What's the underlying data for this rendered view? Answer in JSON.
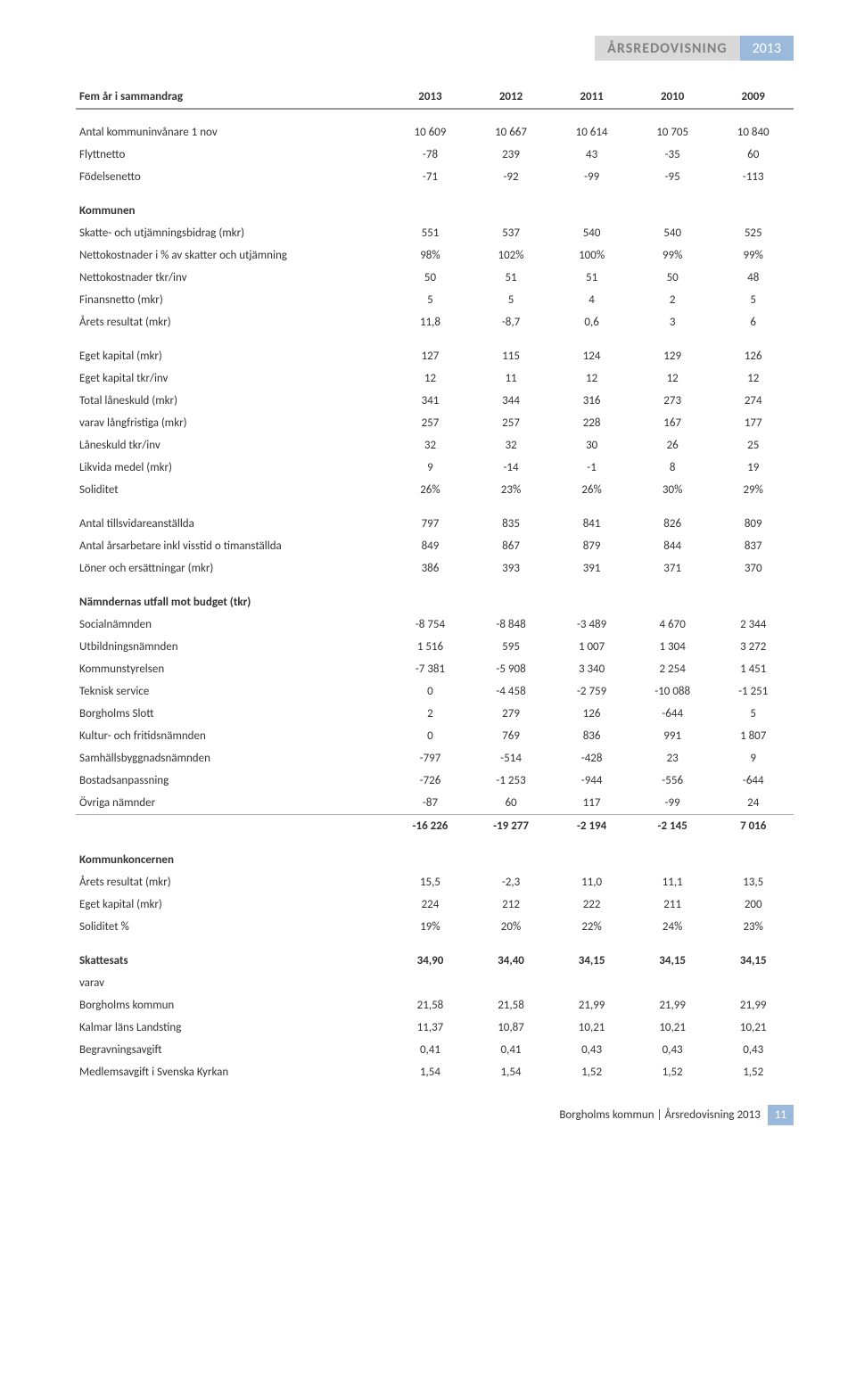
{
  "header": {
    "title": "ÅRSREDOVISNING",
    "year": "2013"
  },
  "years": [
    "2013",
    "2012",
    "2011",
    "2010",
    "2009"
  ],
  "sections": [
    {
      "title": "Fem år i sammandrag",
      "type": "title-only"
    },
    {
      "rows": [
        {
          "label": "Antal kommuninvånare 1 nov",
          "vals": [
            "10 609",
            "10 667",
            "10 614",
            "10 705",
            "10 840"
          ]
        },
        {
          "label": "Flyttnetto",
          "vals": [
            "-78",
            "239",
            "43",
            "-35",
            "60"
          ]
        },
        {
          "label": "Födelsenetto",
          "vals": [
            "-71",
            "-92",
            "-99",
            "-95",
            "-113"
          ]
        }
      ]
    },
    {
      "title": "Kommunen",
      "rows": [
        {
          "label": "Skatte- och utjämningsbidrag (mkr)",
          "vals": [
            "551",
            "537",
            "540",
            "540",
            "525"
          ]
        },
        {
          "label": "Nettokostnader i % av skatter och utjämning",
          "vals": [
            "98%",
            "102%",
            "100%",
            "99%",
            "99%"
          ]
        },
        {
          "label": "Nettokostnader tkr/inv",
          "vals": [
            "50",
            "51",
            "51",
            "50",
            "48"
          ]
        },
        {
          "label": "Finansnetto (mkr)",
          "vals": [
            "5",
            "5",
            "4",
            "2",
            "5"
          ]
        },
        {
          "label": "Årets resultat (mkr)",
          "vals": [
            "11,8",
            "-8,7",
            "0,6",
            "3",
            "6"
          ]
        }
      ]
    },
    {
      "rows": [
        {
          "label": "Eget kapital (mkr)",
          "vals": [
            "127",
            "115",
            "124",
            "129",
            "126"
          ]
        },
        {
          "label": "Eget kapital tkr/inv",
          "vals": [
            "12",
            "11",
            "12",
            "12",
            "12"
          ]
        },
        {
          "label": "Total låneskuld (mkr)",
          "vals": [
            "341",
            "344",
            "316",
            "273",
            "274"
          ]
        },
        {
          "label": "varav långfristiga (mkr)",
          "vals": [
            "257",
            "257",
            "228",
            "167",
            "177"
          ]
        },
        {
          "label": "Låneskuld tkr/inv",
          "vals": [
            "32",
            "32",
            "30",
            "26",
            "25"
          ]
        },
        {
          "label": "Likvida medel (mkr)",
          "vals": [
            "9",
            "-14",
            "-1",
            "8",
            "19"
          ]
        },
        {
          "label": "Soliditet",
          "vals": [
            "26%",
            "23%",
            "26%",
            "30%",
            "29%"
          ]
        }
      ]
    },
    {
      "rows": [
        {
          "label": "Antal tillsvidareanställda",
          "vals": [
            "797",
            "835",
            "841",
            "826",
            "809"
          ]
        },
        {
          "label": "Antal årsarbetare inkl visstid o timanställda",
          "vals": [
            "849",
            "867",
            "879",
            "844",
            "837"
          ]
        },
        {
          "label": "Löner och ersättningar (mkr)",
          "vals": [
            "386",
            "393",
            "391",
            "371",
            "370"
          ]
        }
      ]
    },
    {
      "title": "Nämndernas utfall mot budget (tkr)",
      "rows": [
        {
          "label": "Socialnämnden",
          "vals": [
            "-8 754",
            "-8 848",
            "-3 489",
            "4 670",
            "2 344"
          ]
        },
        {
          "label": "Utbildningsnämnden",
          "vals": [
            "1 516",
            "595",
            "1 007",
            "1 304",
            "3 272"
          ]
        },
        {
          "label": "Kommunstyrelsen",
          "vals": [
            "-7 381",
            "-5 908",
            "3 340",
            "2 254",
            "1 451"
          ]
        },
        {
          "label": "Teknisk service",
          "vals": [
            "0",
            "-4 458",
            "-2 759",
            "-10 088",
            "-1 251"
          ]
        },
        {
          "label": "Borgholms Slott",
          "vals": [
            "2",
            "279",
            "126",
            "-644",
            "5"
          ]
        },
        {
          "label": "Kultur- och fritidsnämnden",
          "vals": [
            "0",
            "769",
            "836",
            "991",
            "1 807"
          ]
        },
        {
          "label": "Samhällsbyggnadsnämnden",
          "vals": [
            "-797",
            "-514",
            "-428",
            "23",
            "9"
          ]
        },
        {
          "label": "Bostadsanpassning",
          "vals": [
            "-726",
            "-1 253",
            "-944",
            "-556",
            "-644"
          ]
        },
        {
          "label": "Övriga nämnder",
          "vals": [
            "-87",
            "60",
            "117",
            "-99",
            "24"
          ]
        },
        {
          "label": "",
          "vals": [
            "-16 226",
            "-19 277",
            "-2 194",
            "-2 145",
            "7 016"
          ],
          "bold": true,
          "topline": true
        }
      ]
    },
    {
      "title": "Kommunkoncernen",
      "rows": [
        {
          "label": "Årets resultat (mkr)",
          "vals": [
            "15,5",
            "-2,3",
            "11,0",
            "11,1",
            "13,5"
          ]
        },
        {
          "label": "Eget kapital (mkr)",
          "vals": [
            "224",
            "212",
            "222",
            "211",
            "200"
          ]
        },
        {
          "label": "Soliditet %",
          "vals": [
            "19%",
            "20%",
            "22%",
            "24%",
            "23%"
          ]
        }
      ]
    },
    {
      "rows": [
        {
          "label": "Skattesats",
          "vals": [
            "34,90",
            "34,40",
            "34,15",
            "34,15",
            "34,15"
          ],
          "bold": true
        },
        {
          "label": "varav",
          "vals": [
            "",
            "",
            "",
            "",
            ""
          ]
        },
        {
          "label": "Borgholms kommun",
          "vals": [
            "21,58",
            "21,58",
            "21,99",
            "21,99",
            "21,99"
          ]
        },
        {
          "label": "Kalmar läns Landsting",
          "vals": [
            "11,37",
            "10,87",
            "10,21",
            "10,21",
            "10,21"
          ]
        },
        {
          "label": "Begravningsavgift",
          "vals": [
            "0,41",
            "0,41",
            "0,43",
            "0,43",
            "0,43"
          ]
        },
        {
          "label": "Medlemsavgift i Svenska Kyrkan",
          "vals": [
            "1,54",
            "1,54",
            "1,52",
            "1,52",
            "1,52"
          ]
        }
      ]
    }
  ],
  "footer": {
    "text": "Borgholms kommun | Årsredovisning 2013",
    "page": "11"
  }
}
